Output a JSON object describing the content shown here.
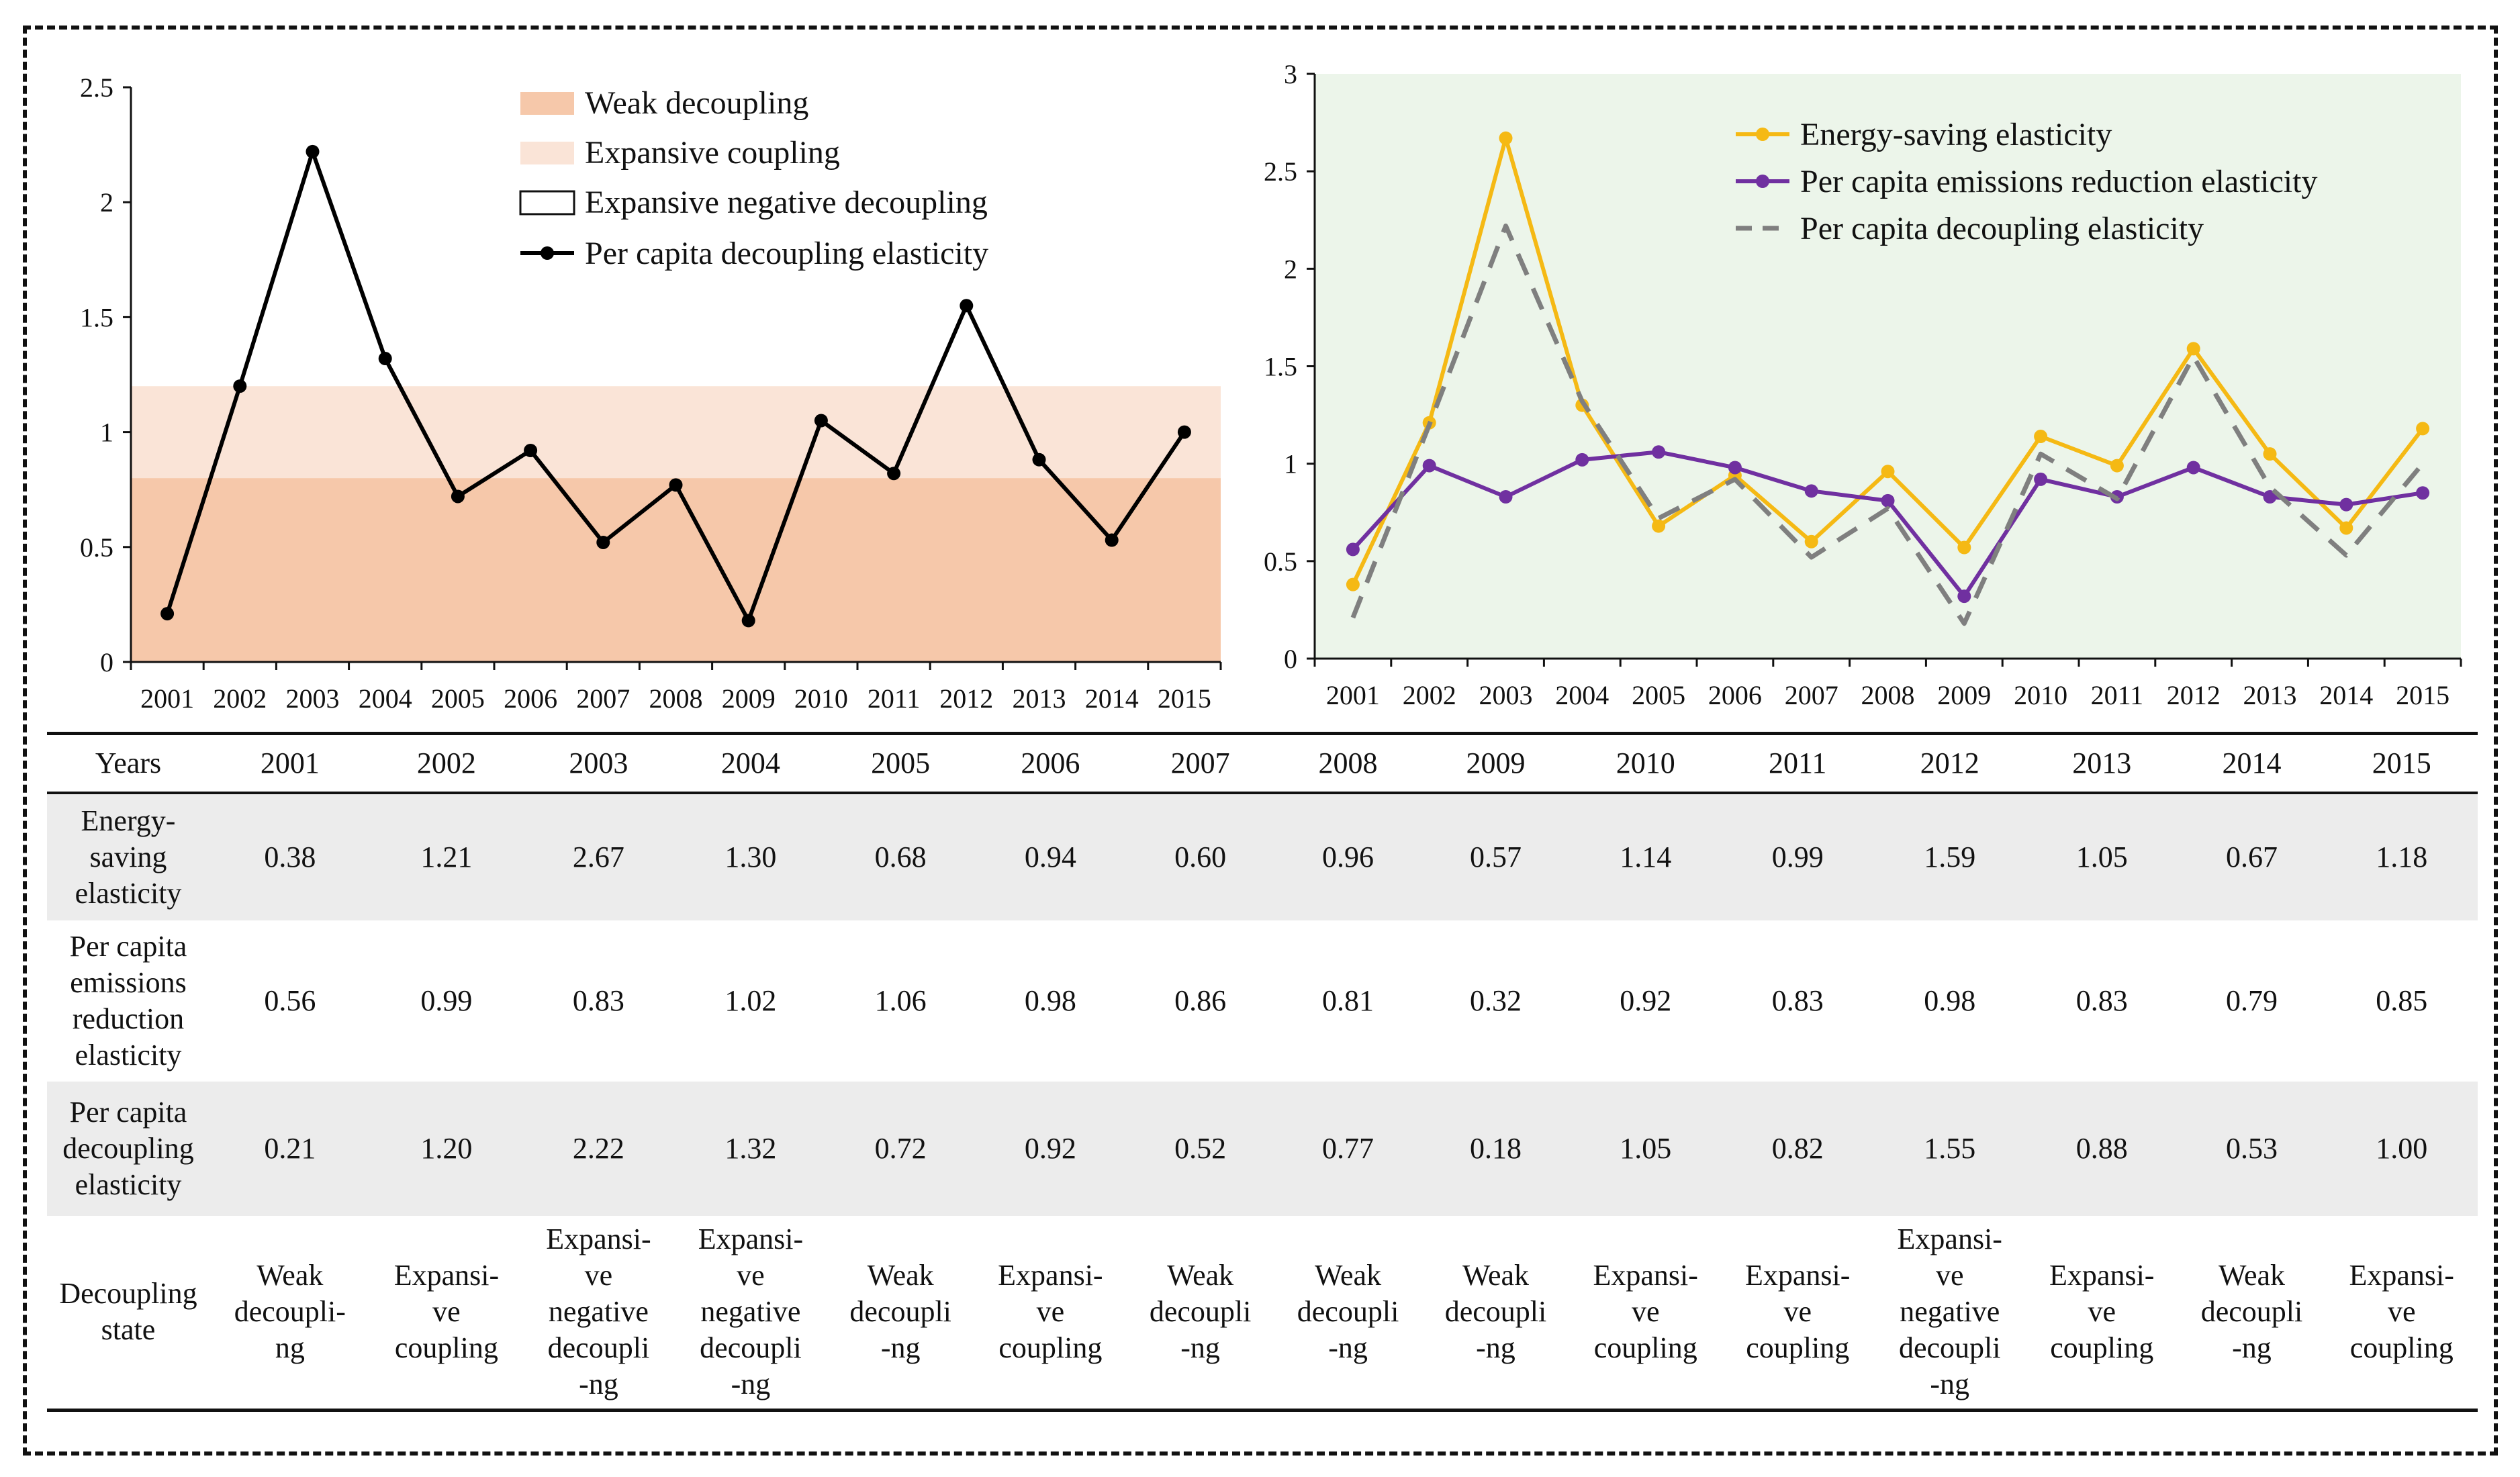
{
  "chart_data": [
    {
      "type": "line",
      "title": "",
      "xlabel": "",
      "ylabel": "",
      "ylim": [
        0,
        2.5
      ],
      "yticks": [
        "0",
        "0.5",
        "1",
        "1.5",
        "2",
        "2.5"
      ],
      "categories": [
        "2001",
        "2002",
        "2003",
        "2004",
        "2005",
        "2006",
        "2007",
        "2008",
        "2009",
        "2010",
        "2011",
        "2012",
        "2013",
        "2014",
        "2015"
      ],
      "bands": [
        {
          "name": "Weak decoupling",
          "from": 0,
          "to": 0.8,
          "color": "#f6c8aa"
        },
        {
          "name": "Expansive coupling",
          "from": 0.8,
          "to": 1.2,
          "color": "#fae4d7"
        },
        {
          "name": "Expansive negative decoupling",
          "from": 1.2,
          "to": 2.5,
          "color": "#ffffff"
        }
      ],
      "series": [
        {
          "name": "Per capita decoupling elasticity",
          "color": "#000000",
          "values": [
            0.21,
            1.2,
            2.22,
            1.32,
            0.72,
            0.92,
            0.52,
            0.77,
            0.18,
            1.05,
            0.82,
            1.55,
            0.88,
            0.53,
            1.0
          ]
        }
      ],
      "legend": {
        "position": "top-center",
        "entries": [
          "Weak decoupling",
          "Expansive coupling",
          "Expansive negative decoupling",
          "Per capita decoupling elasticity"
        ]
      }
    },
    {
      "type": "line",
      "title": "",
      "xlabel": "",
      "ylabel": "",
      "ylim": [
        0,
        3
      ],
      "yticks": [
        "0",
        "0.5",
        "1",
        "1.5",
        "2",
        "2.5",
        "3"
      ],
      "background": "#ecf5ea",
      "categories": [
        "2001",
        "2002",
        "2003",
        "2004",
        "2005",
        "2006",
        "2007",
        "2008",
        "2009",
        "2010",
        "2011",
        "2012",
        "2013",
        "2014",
        "2015"
      ],
      "series": [
        {
          "name": "Energy-saving elasticity",
          "color": "#f5b914",
          "style": "solid",
          "values": [
            0.38,
            1.21,
            2.67,
            1.3,
            0.68,
            0.94,
            0.6,
            0.96,
            0.57,
            1.14,
            0.99,
            1.59,
            1.05,
            0.67,
            1.18
          ]
        },
        {
          "name": "Per capita emissions reduction elasticity",
          "color": "#7030a0",
          "style": "solid",
          "values": [
            0.56,
            0.99,
            0.83,
            1.02,
            1.06,
            0.98,
            0.86,
            0.81,
            0.32,
            0.92,
            0.83,
            0.98,
            0.83,
            0.79,
            0.85
          ]
        },
        {
          "name": "Per capita decoupling elasticity",
          "color": "#7f7f7f",
          "style": "dashed",
          "values": [
            0.21,
            1.2,
            2.22,
            1.32,
            0.72,
            0.92,
            0.52,
            0.77,
            0.18,
            1.05,
            0.82,
            1.55,
            0.88,
            0.53,
            1.0
          ]
        }
      ],
      "legend": {
        "position": "top-center",
        "entries": [
          "Energy-saving elasticity",
          "Per capita emissions reduction elasticity",
          "Per capita decoupling elasticity"
        ]
      }
    }
  ],
  "table": {
    "header_label": "Years",
    "years": [
      "2001",
      "2002",
      "2003",
      "2004",
      "2005",
      "2006",
      "2007",
      "2008",
      "2009",
      "2010",
      "2011",
      "2012",
      "2013",
      "2014",
      "2015"
    ],
    "rows": [
      {
        "label": [
          "Energy-",
          "saving",
          "elasticity"
        ],
        "values": [
          "0.38",
          "1.21",
          "2.67",
          "1.30",
          "0.68",
          "0.94",
          "0.60",
          "0.96",
          "0.57",
          "1.14",
          "0.99",
          "1.59",
          "1.05",
          "0.67",
          "1.18"
        ]
      },
      {
        "label": [
          "Per capita",
          "emissions",
          "reduction",
          "elasticity"
        ],
        "values": [
          "0.56",
          "0.99",
          "0.83",
          "1.02",
          "1.06",
          "0.98",
          "0.86",
          "0.81",
          "0.32",
          "0.92",
          "0.83",
          "0.98",
          "0.83",
          "0.79",
          "0.85"
        ]
      },
      {
        "label": [
          "Per capita",
          "decoupling",
          "elasticity"
        ],
        "values": [
          "0.21",
          "1.20",
          "2.22",
          "1.32",
          "0.72",
          "0.92",
          "0.52",
          "0.77",
          "0.18",
          "1.05",
          "0.82",
          "1.55",
          "0.88",
          "0.53",
          "1.00"
        ]
      },
      {
        "label": [
          "Decoupling",
          "state"
        ],
        "states": [
          [
            "Weak",
            "decoupli-",
            "ng"
          ],
          [
            "Expansi-",
            "ve",
            "coupling"
          ],
          [
            "Expansi-",
            "ve",
            "negative",
            "decoupli",
            "-ng"
          ],
          [
            "Expansi-",
            "ve",
            "negative",
            "decoupli",
            "-ng"
          ],
          [
            "Weak",
            "decoupli",
            "-ng"
          ],
          [
            "Expansi-",
            "ve",
            "coupling"
          ],
          [
            "Weak",
            "decoupli",
            "-ng"
          ],
          [
            "Weak",
            "decoupli",
            "-ng"
          ],
          [
            "Weak",
            "decoupli",
            "-ng"
          ],
          [
            "Expansi-",
            "ve",
            "coupling"
          ],
          [
            "Expansi-",
            "ve",
            "coupling"
          ],
          [
            "Expansi-",
            "ve",
            "negative",
            "decoupli",
            "-ng"
          ],
          [
            "Expansi-",
            "ve",
            "coupling"
          ],
          [
            "Weak",
            "decoupli",
            "-ng"
          ],
          [
            "Expansi-",
            "ve",
            "coupling"
          ]
        ]
      }
    ]
  }
}
